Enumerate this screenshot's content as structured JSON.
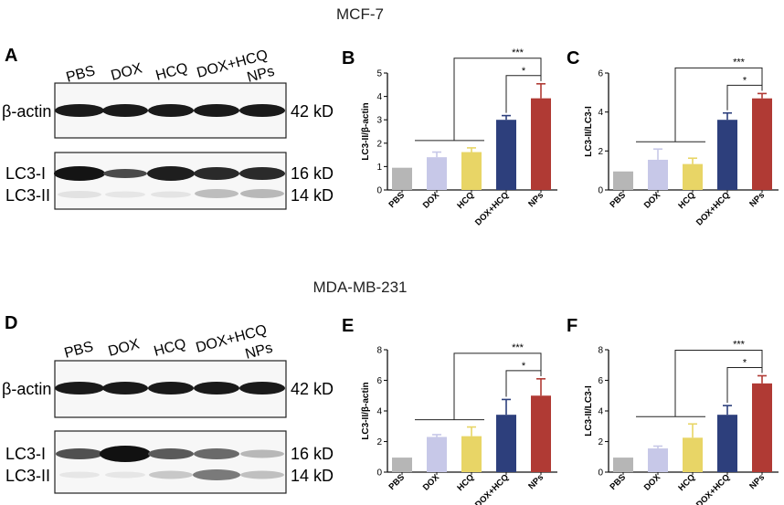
{
  "figure": {
    "sections": [
      {
        "title": "MCF-7",
        "blot": {
          "letter": "A",
          "lanes": [
            "PBS",
            "DOX",
            "HCQ",
            "DOX+HCQ",
            "NPs"
          ],
          "top_band_label": "β-actin",
          "top_band_size": "42 kD",
          "bottom_band_labels": [
            "LC3-I",
            "LC3-II"
          ],
          "bottom_band_sizes": [
            "16 kD",
            "14 kD"
          ]
        }
      },
      {
        "title": "MDA-MB-231",
        "blot": {
          "letter": "D",
          "lanes": [
            "PBS",
            "DOX",
            "HCQ",
            "DOX+HCQ",
            "NPs"
          ],
          "top_band_label": "β-actin",
          "top_band_size": "42 kD",
          "bottom_band_labels": [
            "LC3-I",
            "LC3-II"
          ],
          "bottom_band_sizes": [
            "16 kD",
            "14 kD"
          ]
        }
      }
    ]
  },
  "chart_data": [
    {
      "panel": "B",
      "type": "bar",
      "categories": [
        "PBS",
        "DOX",
        "HCQ",
        "DOX+HCQ",
        "NPs"
      ],
      "values": [
        0.95,
        1.4,
        1.62,
        3.0,
        3.92
      ],
      "errors": [
        0,
        0.22,
        0.18,
        0.18,
        0.62
      ],
      "colors": [
        "#b6b6b6",
        "#c7c8e8",
        "#e8d566",
        "#2d3f7c",
        "#b03a34"
      ],
      "ylabel": "LC3-II/β-actin",
      "ylim": [
        0,
        5
      ],
      "yticks": [
        "0",
        "1",
        "2",
        "3",
        "4",
        "5"
      ],
      "significance": [
        "***",
        "*"
      ]
    },
    {
      "panel": "C",
      "type": "bar",
      "categories": [
        "PBS",
        "DOX",
        "HCQ",
        "DOX+HCQ",
        "NPs"
      ],
      "values": [
        0.95,
        1.55,
        1.33,
        3.6,
        4.7
      ],
      "errors": [
        0,
        0.55,
        0.3,
        0.35,
        0.25
      ],
      "colors": [
        "#b6b6b6",
        "#c7c8e8",
        "#e8d566",
        "#2d3f7c",
        "#b03a34"
      ],
      "ylabel": "LC3-II/LC3-I",
      "ylim": [
        0,
        6
      ],
      "yticks": [
        "0",
        "2",
        "4",
        "6"
      ],
      "significance": [
        "***",
        "*"
      ]
    },
    {
      "panel": "E",
      "type": "bar",
      "categories": [
        "PBS",
        "DOX",
        "HCQ",
        "DOX+HCQ",
        "NPs"
      ],
      "values": [
        0.95,
        2.3,
        2.35,
        3.75,
        5.0
      ],
      "errors": [
        0,
        0.15,
        0.6,
        1.0,
        1.1
      ],
      "colors": [
        "#b6b6b6",
        "#c7c8e8",
        "#e8d566",
        "#2d3f7c",
        "#b03a34"
      ],
      "ylabel": "LC3-II/β-actin",
      "ylim": [
        0,
        8
      ],
      "yticks": [
        "0",
        "2",
        "4",
        "6",
        "8"
      ],
      "significance": [
        "***",
        "*"
      ]
    },
    {
      "panel": "F",
      "type": "bar",
      "categories": [
        "PBS",
        "DOX",
        "HCQ",
        "DOX+HCQ",
        "NPs"
      ],
      "values": [
        0.95,
        1.55,
        2.25,
        3.75,
        5.8
      ],
      "errors": [
        0,
        0.15,
        0.9,
        0.6,
        0.5
      ],
      "colors": [
        "#b6b6b6",
        "#c7c8e8",
        "#e8d566",
        "#2d3f7c",
        "#b03a34"
      ],
      "ylabel": "LC3-II/LC3-I",
      "ylim": [
        0,
        8
      ],
      "yticks": [
        "0",
        "2",
        "4",
        "6",
        "8"
      ],
      "significance": [
        "***",
        "*"
      ]
    }
  ]
}
